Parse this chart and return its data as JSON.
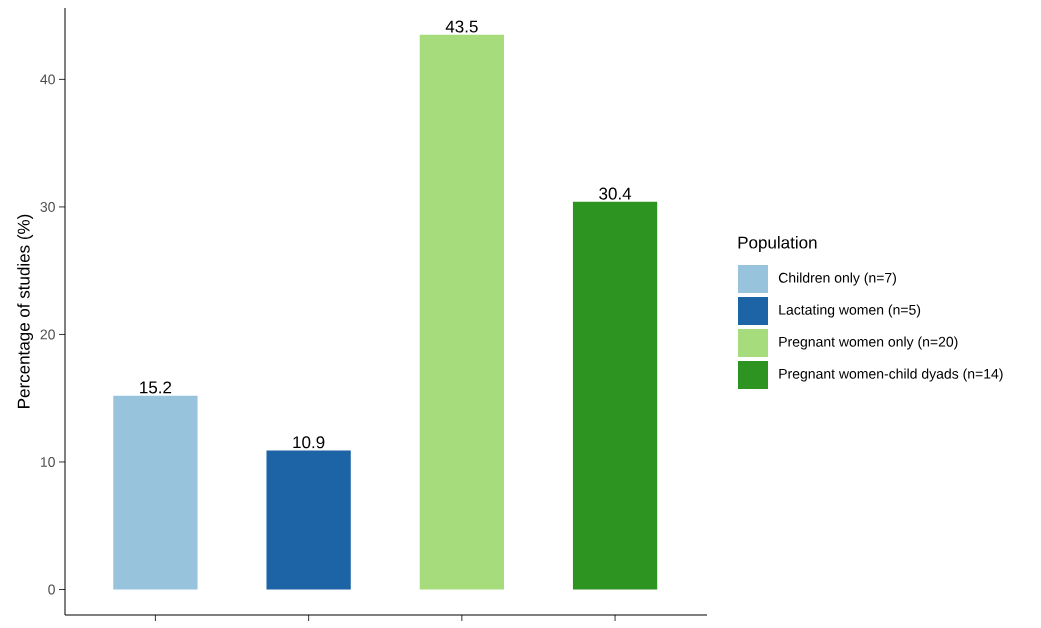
{
  "chart_data": {
    "type": "bar",
    "ylabel": "Percentage of studies (%)",
    "legend_title": "Population",
    "categories": [
      null,
      null,
      null,
      null
    ],
    "series": [
      {
        "name": "Children only (n=7)",
        "color": "#97c3dd",
        "values": [
          15.2,
          null,
          null,
          null
        ]
      },
      {
        "name": "Lactating women (n=5)",
        "color": "#1c64a6",
        "values": [
          null,
          10.9,
          null,
          null
        ]
      },
      {
        "name": "Pregnant women only (n=20)",
        "color": "#a6dc7c",
        "values": [
          null,
          null,
          43.5,
          null
        ]
      },
      {
        "name": "Pregnant women-child dyads (n=14)",
        "color": "#2e9421",
        "values": [
          null,
          null,
          null,
          30.4
        ]
      }
    ],
    "ylim": [
      -2,
      45.6
    ],
    "yticks": [
      0,
      10,
      20,
      30,
      40
    ],
    "data_labels": true,
    "grid": false,
    "legend": "right"
  }
}
